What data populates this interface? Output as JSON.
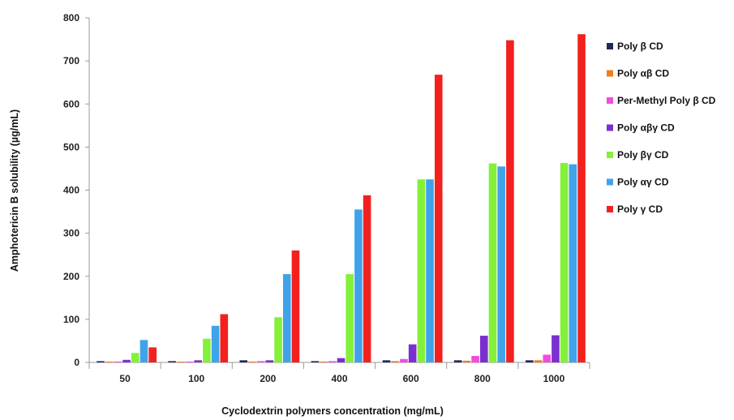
{
  "chart_data": {
    "type": "bar",
    "xlabel": "Cyclodextrin polymers concentration (mg/mL)",
    "ylabel": "Amphotericin B solubility (µg/mL)",
    "ylim": [
      0,
      800
    ],
    "yticks": [
      0,
      100,
      200,
      300,
      400,
      500,
      600,
      700,
      800
    ],
    "grid": false,
    "legend_position": "right",
    "categories": [
      "50",
      "100",
      "200",
      "400",
      "600",
      "800",
      "1000"
    ],
    "series": [
      {
        "name": "Poly β CD",
        "color": "#1f2a5c",
        "values": [
          3,
          3,
          5,
          3,
          5,
          5,
          5
        ]
      },
      {
        "name": "Poly αβ CD",
        "color": "#f07c1c",
        "values": [
          1,
          1,
          2,
          2,
          3,
          4,
          5
        ]
      },
      {
        "name": "Per-Methyl Poly β CD",
        "color": "#f24be0",
        "values": [
          2,
          2,
          3,
          3,
          8,
          15,
          18
        ]
      },
      {
        "name": "Poly αβγ CD",
        "color": "#7b2fd0",
        "values": [
          6,
          5,
          5,
          10,
          42,
          62,
          63
        ]
      },
      {
        "name": "Poly βγ CD",
        "color": "#84f03a",
        "values": [
          22,
          55,
          105,
          205,
          425,
          462,
          463
        ]
      },
      {
        "name": "Poly αγ CD",
        "color": "#3fa3ea",
        "values": [
          52,
          85,
          205,
          355,
          425,
          455,
          460
        ]
      },
      {
        "name": "Poly γ CD",
        "color": "#f2211e",
        "values": [
          35,
          112,
          260,
          388,
          668,
          748,
          762
        ]
      }
    ]
  }
}
